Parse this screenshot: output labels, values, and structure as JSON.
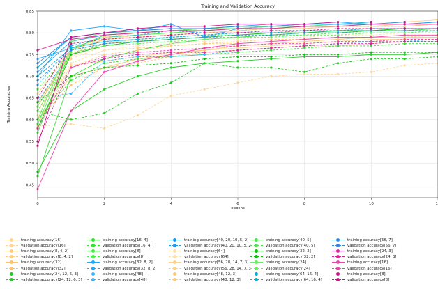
{
  "chart_data": {
    "type": "line",
    "title": "Training and Validation Accuracy",
    "xlabel": "epochs",
    "ylabel": "Training Accuracies",
    "xlim": [
      0,
      12
    ],
    "ylim": [
      0.42,
      0.85
    ],
    "xticks": [
      0,
      2,
      4,
      6,
      8,
      10,
      12
    ],
    "yticks": [
      0.45,
      0.5,
      0.55,
      0.6,
      0.65,
      0.7,
      0.75,
      0.8,
      0.85
    ],
    "grid": true,
    "legend_position": "bottom",
    "x": [
      0,
      1,
      2,
      3,
      4,
      5,
      6,
      7,
      8,
      9,
      10,
      11,
      12
    ],
    "series": [
      {
        "name": "training accuracy[16]",
        "color": "#ffd699",
        "dashed": false,
        "values": [
          0.59,
          0.725,
          0.735,
          0.745,
          0.755,
          0.76,
          0.765,
          0.77,
          0.775,
          0.78,
          0.785,
          0.785,
          0.79
        ]
      },
      {
        "name": "validation accuracy[16]",
        "color": "#ffd699",
        "dashed": true,
        "values": [
          0.585,
          0.59,
          0.58,
          0.61,
          0.655,
          0.67,
          0.685,
          0.7,
          0.705,
          0.705,
          0.71,
          0.725,
          0.73
        ]
      },
      {
        "name": "training accuracy[8, 4, 2]",
        "color": "#ffcc80",
        "dashed": false,
        "values": [
          0.64,
          0.75,
          0.785,
          0.795,
          0.8,
          0.805,
          0.81,
          0.81,
          0.815,
          0.815,
          0.815,
          0.82,
          0.82
        ]
      },
      {
        "name": "validation accuracy[8, 4, 2]",
        "color": "#ffcc80",
        "dashed": true,
        "values": [
          0.62,
          0.73,
          0.76,
          0.765,
          0.77,
          0.775,
          0.775,
          0.78,
          0.785,
          0.79,
          0.79,
          0.79,
          0.795
        ]
      },
      {
        "name": "training accuracy[32]",
        "color": "#ffc26b",
        "dashed": false,
        "values": [
          0.6,
          0.7,
          0.72,
          0.74,
          0.75,
          0.76,
          0.77,
          0.775,
          0.78,
          0.785,
          0.79,
          0.79,
          0.79
        ]
      },
      {
        "name": "validation accuracy[32]",
        "color": "#ffc26b",
        "dashed": true,
        "values": [
          0.6,
          0.68,
          0.72,
          0.73,
          0.745,
          0.755,
          0.76,
          0.765,
          0.77,
          0.77,
          0.775,
          0.78,
          0.78
        ]
      },
      {
        "name": "training accuracy[24, 12, 6, 3]",
        "color": "#22cc22",
        "dashed": false,
        "values": [
          0.48,
          0.62,
          0.67,
          0.7,
          0.72,
          0.73,
          0.735,
          0.74,
          0.745,
          0.745,
          0.75,
          0.75,
          0.755
        ]
      },
      {
        "name": "validation accuracy[24, 12, 6, 3]",
        "color": "#22cc22",
        "dashed": true,
        "values": [
          0.62,
          0.6,
          0.615,
          0.66,
          0.685,
          0.73,
          0.72,
          0.72,
          0.71,
          0.73,
          0.74,
          0.74,
          0.745
        ]
      },
      {
        "name": "training accuracy[16, 4]",
        "color": "#33dd33",
        "dashed": false,
        "values": [
          0.47,
          0.7,
          0.74,
          0.76,
          0.775,
          0.785,
          0.79,
          0.795,
          0.8,
          0.8,
          0.805,
          0.805,
          0.81
        ]
      },
      {
        "name": "validation accuracy[16, 4]",
        "color": "#33dd33",
        "dashed": true,
        "values": [
          0.6,
          0.69,
          0.73,
          0.74,
          0.745,
          0.75,
          0.755,
          0.76,
          0.765,
          0.77,
          0.77,
          0.775,
          0.775
        ]
      },
      {
        "name": "training accuracy[8]",
        "color": "#44ee44",
        "dashed": false,
        "values": [
          0.59,
          0.765,
          0.79,
          0.795,
          0.8,
          0.805,
          0.81,
          0.81,
          0.815,
          0.815,
          0.82,
          0.82,
          0.82
        ]
      },
      {
        "name": "validation accuracy[8]",
        "color": "#44ee44",
        "dashed": true,
        "values": [
          0.67,
          0.76,
          0.775,
          0.78,
          0.79,
          0.795,
          0.795,
          0.8,
          0.8,
          0.805,
          0.805,
          0.81,
          0.81
        ]
      },
      {
        "name": "training accuracy[32, 8, 2]",
        "color": "#1ea7ff",
        "dashed": false,
        "values": [
          0.7,
          0.805,
          0.815,
          0.805,
          0.82,
          0.79,
          0.81,
          0.815,
          0.82,
          0.825,
          0.82,
          0.82,
          0.825
        ]
      },
      {
        "name": "validation accuracy[32, 8, 2]",
        "color": "#1ea7ff",
        "dashed": true,
        "values": [
          0.68,
          0.77,
          0.79,
          0.795,
          0.805,
          0.8,
          0.805,
          0.81,
          0.81,
          0.815,
          0.815,
          0.815,
          0.82
        ]
      },
      {
        "name": "training accuracy[48]",
        "color": "#33b5ff",
        "dashed": false,
        "values": [
          0.74,
          0.765,
          0.78,
          0.785,
          0.79,
          0.795,
          0.8,
          0.8,
          0.805,
          0.805,
          0.81,
          0.81,
          0.81
        ]
      },
      {
        "name": "validation accuracy[48]",
        "color": "#33b5ff",
        "dashed": true,
        "values": [
          0.65,
          0.66,
          0.735,
          0.745,
          0.745,
          0.75,
          0.76,
          0.765,
          0.77,
          0.775,
          0.78,
          0.78,
          0.785
        ]
      },
      {
        "name": "training accuracy[40, 20, 10, 5, 2]",
        "color": "#2299ee",
        "dashed": false,
        "values": [
          0.71,
          0.78,
          0.795,
          0.8,
          0.805,
          0.81,
          0.81,
          0.815,
          0.815,
          0.82,
          0.82,
          0.82,
          0.825
        ]
      },
      {
        "name": "validation accuracy[40, 20, 10, 5, 2]",
        "color": "#2299ee",
        "dashed": true,
        "values": [
          0.64,
          0.76,
          0.775,
          0.785,
          0.79,
          0.795,
          0.8,
          0.8,
          0.805,
          0.805,
          0.81,
          0.81,
          0.81
        ]
      },
      {
        "name": "training accuracy[64]",
        "color": "#ffe0b0",
        "dashed": false,
        "values": [
          0.62,
          0.745,
          0.775,
          0.785,
          0.79,
          0.795,
          0.8,
          0.8,
          0.805,
          0.805,
          0.81,
          0.81,
          0.81
        ]
      },
      {
        "name": "validation accuracy[64]",
        "color": "#ffe0b0",
        "dashed": true,
        "values": [
          0.61,
          0.73,
          0.76,
          0.77,
          0.775,
          0.78,
          0.785,
          0.79,
          0.79,
          0.795,
          0.795,
          0.8,
          0.8
        ]
      },
      {
        "name": "training accuracy[56, 28, 14, 7, 3]",
        "color": "#ffd28a",
        "dashed": false,
        "values": [
          0.66,
          0.76,
          0.79,
          0.8,
          0.805,
          0.81,
          0.815,
          0.815,
          0.82,
          0.82,
          0.825,
          0.825,
          0.83
        ]
      },
      {
        "name": "validation accuracy[56, 28, 14, 7, 3]",
        "color": "#ffd28a",
        "dashed": true,
        "values": [
          0.64,
          0.74,
          0.77,
          0.78,
          0.785,
          0.79,
          0.795,
          0.8,
          0.8,
          0.805,
          0.805,
          0.81,
          0.81
        ]
      },
      {
        "name": "training accuracy[48, 12, 3]",
        "color": "#ffc978",
        "dashed": false,
        "values": [
          0.63,
          0.76,
          0.785,
          0.79,
          0.795,
          0.8,
          0.805,
          0.81,
          0.81,
          0.815,
          0.815,
          0.815,
          0.82
        ]
      },
      {
        "name": "validation accuracy[48, 12, 3]",
        "color": "#ffc978",
        "dashed": true,
        "values": [
          0.62,
          0.72,
          0.75,
          0.76,
          0.77,
          0.775,
          0.78,
          0.785,
          0.785,
          0.79,
          0.79,
          0.795,
          0.795
        ]
      },
      {
        "name": "training accuracy[40, 5]",
        "color": "#55dd55",
        "dashed": false,
        "values": [
          0.57,
          0.76,
          0.795,
          0.8,
          0.805,
          0.81,
          0.815,
          0.815,
          0.82,
          0.82,
          0.82,
          0.825,
          0.825
        ]
      },
      {
        "name": "validation accuracy[40, 5]",
        "color": "#55dd55",
        "dashed": true,
        "values": [
          0.62,
          0.75,
          0.775,
          0.78,
          0.785,
          0.79,
          0.79,
          0.795,
          0.795,
          0.8,
          0.8,
          0.8,
          0.805
        ]
      },
      {
        "name": "training accuracy[32, 2]",
        "color": "#11bb11",
        "dashed": false,
        "values": [
          0.58,
          0.75,
          0.77,
          0.78,
          0.785,
          0.79,
          0.795,
          0.8,
          0.8,
          0.805,
          0.805,
          0.81,
          0.81
        ]
      },
      {
        "name": "validation accuracy[32, 2]",
        "color": "#11bb11",
        "dashed": true,
        "values": [
          0.64,
          0.7,
          0.72,
          0.725,
          0.73,
          0.74,
          0.745,
          0.745,
          0.75,
          0.75,
          0.755,
          0.755,
          0.755
        ]
      },
      {
        "name": "training accuracy[24]",
        "color": "#66ee66",
        "dashed": false,
        "values": [
          0.6,
          0.78,
          0.8,
          0.8,
          0.805,
          0.81,
          0.81,
          0.815,
          0.815,
          0.82,
          0.82,
          0.82,
          0.82
        ]
      },
      {
        "name": "validation accuracy[24]",
        "color": "#66ee66",
        "dashed": true,
        "values": [
          0.63,
          0.755,
          0.77,
          0.775,
          0.78,
          0.785,
          0.79,
          0.79,
          0.795,
          0.795,
          0.8,
          0.8,
          0.8
        ]
      },
      {
        "name": "training accuracy[64, 16, 4]",
        "color": "#00b0dd",
        "dashed": false,
        "values": [
          0.72,
          0.79,
          0.8,
          0.805,
          0.81,
          0.81,
          0.815,
          0.82,
          0.82,
          0.82,
          0.825,
          0.825,
          0.825
        ]
      },
      {
        "name": "validation accuracy[64, 16, 4]",
        "color": "#00b0dd",
        "dashed": true,
        "values": [
          0.7,
          0.765,
          0.78,
          0.785,
          0.79,
          0.795,
          0.8,
          0.8,
          0.805,
          0.805,
          0.81,
          0.81,
          0.81
        ]
      },
      {
        "name": "training accuracy[56, 7]",
        "color": "#3388dd",
        "dashed": false,
        "values": [
          0.73,
          0.79,
          0.8,
          0.805,
          0.81,
          0.81,
          0.815,
          0.815,
          0.82,
          0.82,
          0.82,
          0.825,
          0.825
        ]
      },
      {
        "name": "validation accuracy[56, 7]",
        "color": "#3388dd",
        "dashed": true,
        "values": [
          0.69,
          0.76,
          0.775,
          0.78,
          0.785,
          0.79,
          0.795,
          0.795,
          0.8,
          0.8,
          0.805,
          0.805,
          0.805
        ]
      },
      {
        "name": "training accuracy[24, 3]",
        "color": "#dd2299",
        "dashed": false,
        "values": [
          0.76,
          0.785,
          0.795,
          0.8,
          0.805,
          0.805,
          0.81,
          0.81,
          0.815,
          0.815,
          0.82,
          0.82,
          0.82
        ]
      },
      {
        "name": "validation accuracy[24, 3]",
        "color": "#dd2299",
        "dashed": true,
        "values": [
          0.55,
          0.72,
          0.74,
          0.75,
          0.755,
          0.755,
          0.76,
          0.765,
          0.77,
          0.775,
          0.775,
          0.78,
          0.78
        ]
      },
      {
        "name": "training accuracy[16]",
        "color": "#ee44aa",
        "dashed": false,
        "values": [
          0.44,
          0.62,
          0.71,
          0.735,
          0.75,
          0.765,
          0.775,
          0.78,
          0.785,
          0.79,
          0.79,
          0.795,
          0.795
        ]
      },
      {
        "name": "validation accuracy[16]",
        "color": "#ee44aa",
        "dashed": true,
        "values": [
          0.58,
          0.72,
          0.745,
          0.755,
          0.76,
          0.765,
          0.77,
          0.775,
          0.775,
          0.78,
          0.78,
          0.785,
          0.785
        ]
      },
      {
        "name": "training accuracy[8]",
        "color": "#cc1188",
        "dashed": false,
        "values": [
          0.54,
          0.79,
          0.8,
          0.81,
          0.815,
          0.815,
          0.82,
          0.82,
          0.82,
          0.825,
          0.825,
          0.825,
          0.825
        ]
      },
      {
        "name": "validation accuracy[8]",
        "color": "#cc1188",
        "dashed": true,
        "values": [
          0.65,
          0.775,
          0.785,
          0.79,
          0.795,
          0.8,
          0.8,
          0.805,
          0.805,
          0.81,
          0.81,
          0.81,
          0.81
        ]
      }
    ]
  }
}
